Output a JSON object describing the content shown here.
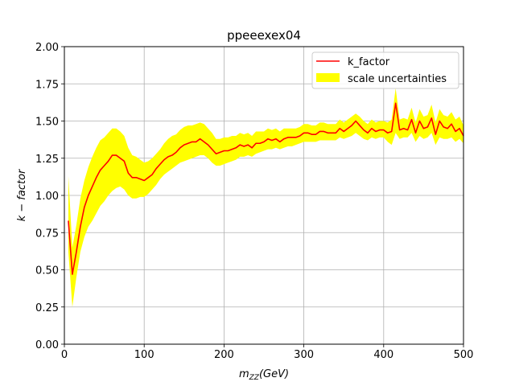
{
  "chart_data": {
    "type": "line",
    "title": "ppeeexex04",
    "xlabel": "m_ZZ(GeV)",
    "ylabel": "k − factor",
    "xlim": [
      0,
      500
    ],
    "ylim": [
      0,
      2.0
    ],
    "grid": true,
    "legend_position": "top-right",
    "x_ticks": [
      "0",
      "100",
      "200",
      "300",
      "400",
      "500"
    ],
    "y_ticks": [
      "0.00",
      "0.25",
      "0.50",
      "0.75",
      "1.00",
      "1.25",
      "1.50",
      "1.75",
      "2.00"
    ],
    "series": [
      {
        "name": "k_factor",
        "kind": "line",
        "color": "#ff0000",
        "x": [
          5,
          10,
          15,
          20,
          25,
          30,
          35,
          40,
          45,
          50,
          55,
          60,
          65,
          70,
          75,
          80,
          85,
          90,
          95,
          100,
          105,
          110,
          115,
          120,
          125,
          130,
          135,
          140,
          145,
          150,
          155,
          160,
          165,
          170,
          175,
          180,
          185,
          190,
          195,
          200,
          205,
          210,
          215,
          220,
          225,
          230,
          235,
          240,
          245,
          250,
          255,
          260,
          265,
          270,
          275,
          280,
          285,
          290,
          295,
          300,
          305,
          310,
          315,
          320,
          325,
          330,
          335,
          340,
          345,
          350,
          355,
          360,
          365,
          370,
          375,
          380,
          385,
          390,
          395,
          400,
          405,
          410,
          415,
          420,
          425,
          430,
          435,
          440,
          445,
          450,
          455,
          460,
          465,
          470,
          475,
          480,
          485,
          490,
          495,
          500
        ],
        "y": [
          0.83,
          0.47,
          0.62,
          0.79,
          0.92,
          1.0,
          1.06,
          1.12,
          1.17,
          1.2,
          1.23,
          1.27,
          1.27,
          1.25,
          1.23,
          1.15,
          1.12,
          1.12,
          1.11,
          1.1,
          1.12,
          1.14,
          1.18,
          1.21,
          1.24,
          1.26,
          1.27,
          1.29,
          1.32,
          1.34,
          1.35,
          1.36,
          1.36,
          1.38,
          1.36,
          1.34,
          1.31,
          1.28,
          1.29,
          1.3,
          1.3,
          1.31,
          1.32,
          1.34,
          1.33,
          1.34,
          1.32,
          1.35,
          1.35,
          1.36,
          1.38,
          1.37,
          1.38,
          1.36,
          1.38,
          1.39,
          1.39,
          1.39,
          1.4,
          1.42,
          1.42,
          1.41,
          1.41,
          1.43,
          1.43,
          1.42,
          1.42,
          1.42,
          1.45,
          1.43,
          1.45,
          1.47,
          1.5,
          1.47,
          1.44,
          1.42,
          1.45,
          1.43,
          1.44,
          1.44,
          1.42,
          1.43,
          1.62,
          1.44,
          1.45,
          1.44,
          1.51,
          1.42,
          1.5,
          1.45,
          1.46,
          1.52,
          1.41,
          1.5,
          1.46,
          1.45,
          1.48,
          1.43,
          1.45,
          1.4
        ]
      },
      {
        "name": "scale uncertainties",
        "kind": "band",
        "color": "#ffff00",
        "x": [
          5,
          10,
          15,
          20,
          25,
          30,
          35,
          40,
          45,
          50,
          55,
          60,
          65,
          70,
          75,
          80,
          85,
          90,
          95,
          100,
          105,
          110,
          115,
          120,
          125,
          130,
          135,
          140,
          145,
          150,
          155,
          160,
          165,
          170,
          175,
          180,
          185,
          190,
          195,
          200,
          205,
          210,
          215,
          220,
          225,
          230,
          235,
          240,
          245,
          250,
          255,
          260,
          265,
          270,
          275,
          280,
          285,
          290,
          295,
          300,
          305,
          310,
          315,
          320,
          325,
          330,
          335,
          340,
          345,
          350,
          355,
          360,
          365,
          370,
          375,
          380,
          385,
          390,
          395,
          400,
          405,
          410,
          415,
          420,
          425,
          430,
          435,
          440,
          445,
          450,
          455,
          460,
          465,
          470,
          475,
          480,
          485,
          490,
          495,
          500
        ],
        "lower": [
          0.62,
          0.25,
          0.45,
          0.62,
          0.72,
          0.79,
          0.83,
          0.88,
          0.93,
          0.96,
          1.0,
          1.03,
          1.05,
          1.06,
          1.04,
          1.0,
          0.98,
          0.98,
          0.99,
          0.99,
          1.01,
          1.04,
          1.07,
          1.11,
          1.14,
          1.16,
          1.18,
          1.2,
          1.22,
          1.23,
          1.24,
          1.25,
          1.26,
          1.27,
          1.27,
          1.25,
          1.22,
          1.2,
          1.2,
          1.21,
          1.22,
          1.23,
          1.24,
          1.26,
          1.26,
          1.27,
          1.26,
          1.28,
          1.29,
          1.3,
          1.31,
          1.31,
          1.32,
          1.31,
          1.32,
          1.33,
          1.33,
          1.34,
          1.35,
          1.36,
          1.36,
          1.36,
          1.36,
          1.37,
          1.37,
          1.37,
          1.37,
          1.37,
          1.39,
          1.38,
          1.39,
          1.4,
          1.42,
          1.4,
          1.38,
          1.37,
          1.39,
          1.38,
          1.39,
          1.39,
          1.36,
          1.34,
          1.42,
          1.38,
          1.39,
          1.39,
          1.42,
          1.36,
          1.4,
          1.38,
          1.39,
          1.42,
          1.34,
          1.39,
          1.38,
          1.38,
          1.39,
          1.36,
          1.38,
          1.35
        ],
        "upper": [
          1.13,
          0.65,
          0.8,
          0.98,
          1.1,
          1.19,
          1.26,
          1.32,
          1.37,
          1.39,
          1.42,
          1.45,
          1.45,
          1.43,
          1.4,
          1.32,
          1.27,
          1.26,
          1.24,
          1.22,
          1.23,
          1.25,
          1.28,
          1.31,
          1.35,
          1.38,
          1.4,
          1.41,
          1.44,
          1.46,
          1.47,
          1.47,
          1.48,
          1.49,
          1.48,
          1.45,
          1.42,
          1.38,
          1.38,
          1.39,
          1.39,
          1.4,
          1.4,
          1.42,
          1.41,
          1.42,
          1.4,
          1.43,
          1.43,
          1.43,
          1.45,
          1.44,
          1.45,
          1.43,
          1.45,
          1.45,
          1.45,
          1.45,
          1.46,
          1.48,
          1.48,
          1.47,
          1.47,
          1.49,
          1.49,
          1.48,
          1.48,
          1.48,
          1.51,
          1.49,
          1.51,
          1.53,
          1.55,
          1.53,
          1.5,
          1.48,
          1.51,
          1.49,
          1.5,
          1.5,
          1.49,
          1.51,
          1.72,
          1.51,
          1.52,
          1.51,
          1.59,
          1.49,
          1.58,
          1.53,
          1.54,
          1.61,
          1.49,
          1.58,
          1.54,
          1.53,
          1.56,
          1.51,
          1.53,
          1.47
        ]
      }
    ]
  }
}
